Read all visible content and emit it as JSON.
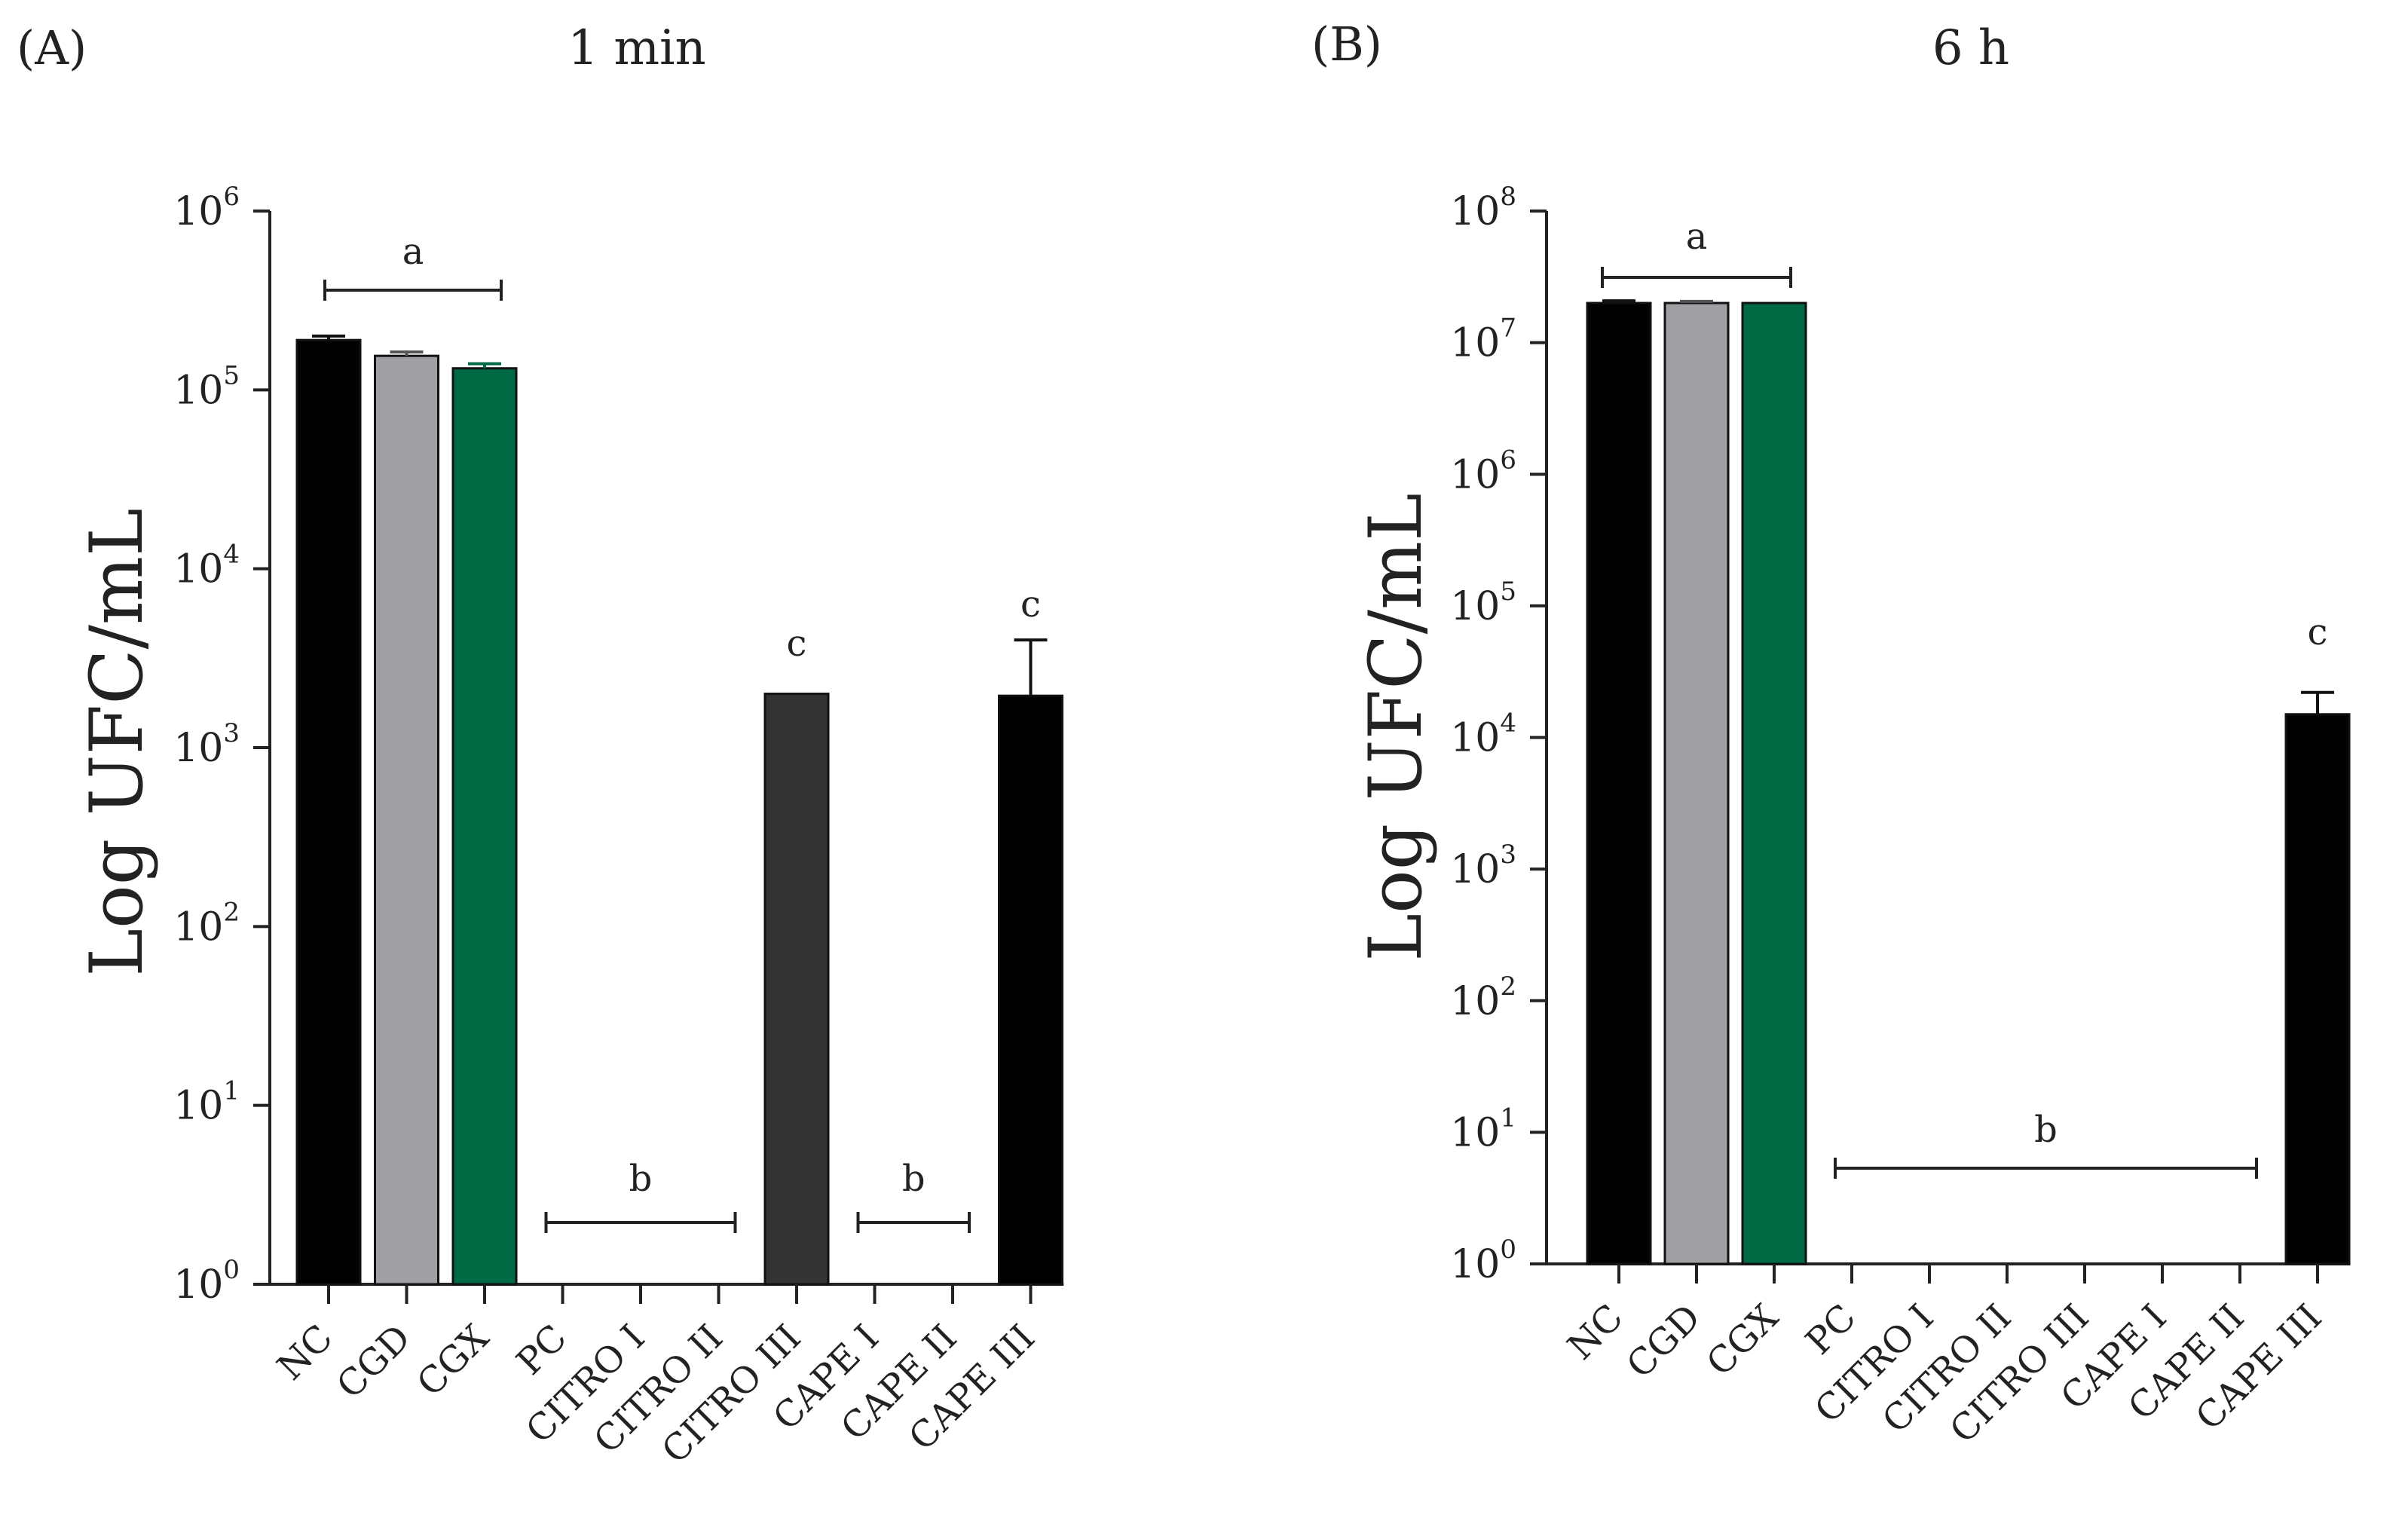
{
  "chart_data": [
    {
      "type": "bar",
      "panel_label": "(A)",
      "title": "1 min",
      "xlabel": "",
      "ylabel": "Log UFC/mL",
      "yscale": "log",
      "ylim": [
        1,
        1000000
      ],
      "ytick_exponents": [
        "0",
        "1",
        "2",
        "3",
        "4",
        "5",
        "6"
      ],
      "categories": [
        "NC",
        "CGD",
        "CGX",
        "PC",
        "CITRO I",
        "CITRO II",
        "CITRO III",
        "CAPE I",
        "CAPE II",
        "CAPE III"
      ],
      "values": [
        190000,
        155000,
        132000,
        1,
        1,
        1,
        2000,
        1,
        1,
        1950
      ],
      "error": [
        10000,
        8000,
        8000,
        0,
        0,
        0,
        0,
        0,
        0,
        2050
      ],
      "colors": [
        "#000000",
        "#a0a0a4",
        "#006a45",
        "#ffffff",
        "#ffffff",
        "#ffffff",
        "#333333",
        "#ffffff",
        "#ffffff",
        "#000000"
      ],
      "significance": [
        {
          "label": "a",
          "from": 0,
          "to": 2,
          "bracket": true
        },
        {
          "label": "b",
          "from": 3,
          "to": 5,
          "bracket": true
        },
        {
          "label": "c",
          "from": 6,
          "to": 6,
          "bracket": false
        },
        {
          "label": "b",
          "from": 7,
          "to": 8,
          "bracket": true
        },
        {
          "label": "c",
          "from": 9,
          "to": 9,
          "bracket": false
        }
      ]
    },
    {
      "type": "bar",
      "panel_label": "(B)",
      "title": "6 h",
      "xlabel": "",
      "ylabel": "Log UFC/mL",
      "yscale": "log",
      "ylim": [
        1,
        100000000
      ],
      "ytick_exponents": [
        "0",
        "1",
        "2",
        "3",
        "4",
        "5",
        "6",
        "7",
        "8"
      ],
      "categories": [
        "NC",
        "CGD",
        "CGX",
        "PC",
        "CITRO I",
        "CITRO II",
        "CITRO III",
        "CAPE I",
        "CAPE II",
        "CAPE III"
      ],
      "values": [
        20000000,
        20000000,
        20000000,
        1,
        1,
        1,
        1,
        1,
        1,
        15000
      ],
      "error": [
        800000,
        600000,
        0,
        0,
        0,
        0,
        0,
        0,
        0,
        7000
      ],
      "colors": [
        "#000000",
        "#a0a0a4",
        "#006a45",
        "#ffffff",
        "#ffffff",
        "#ffffff",
        "#ffffff",
        "#ffffff",
        "#ffffff",
        "#000000"
      ],
      "significance": [
        {
          "label": "a",
          "from": 0,
          "to": 2,
          "bracket": true
        },
        {
          "label": "b",
          "from": 3,
          "to": 8,
          "bracket": true
        },
        {
          "label": "c",
          "from": 9,
          "to": 9,
          "bracket": false
        }
      ]
    }
  ]
}
